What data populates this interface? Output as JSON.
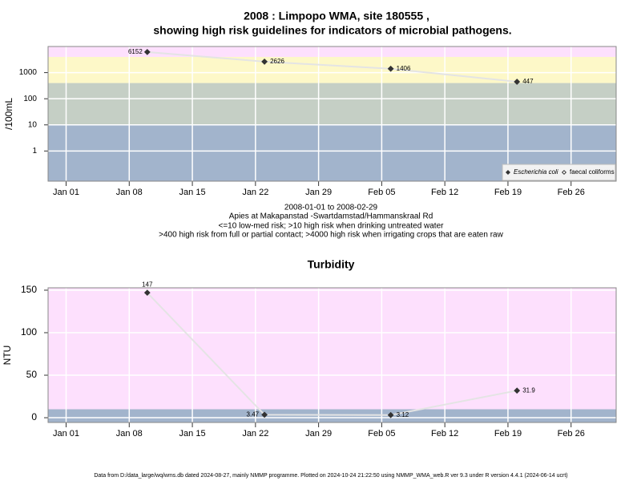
{
  "title": [
    "2008 : Limpopo WMA, site 180555 ,",
    "showing high risk guidelines for indicators of microbial pathogens."
  ],
  "chart_data": [
    {
      "type": "line",
      "log_y": true,
      "ylabel": "/100mL",
      "x": [
        "2008-01-10",
        "2008-01-23",
        "2008-02-06",
        "2008-02-20"
      ],
      "series": [
        {
          "name": "Escherichia coli",
          "color": "#333333",
          "marker": "filled",
          "values": [
            6152,
            2626,
            1406,
            447
          ]
        },
        {
          "name": "faecal coliforms",
          "color": "#333333",
          "marker": "open",
          "values": [
            null,
            null,
            null,
            null
          ]
        }
      ],
      "line_color": "#e4e4e4",
      "xlim": [
        "2007-12-30",
        "2008-03-02"
      ],
      "xticks": [
        {
          "value": "2008-01-01",
          "label": "Jan 01"
        },
        {
          "value": "2008-01-08",
          "label": "Jan 08"
        },
        {
          "value": "2008-01-15",
          "label": "Jan 15"
        },
        {
          "value": "2008-01-22",
          "label": "Jan 22"
        },
        {
          "value": "2008-01-29",
          "label": "Jan 29"
        },
        {
          "value": "2008-02-05",
          "label": "Feb 05"
        },
        {
          "value": "2008-02-12",
          "label": "Feb 12"
        },
        {
          "value": "2008-02-19",
          "label": "Feb 19"
        },
        {
          "value": "2008-02-26",
          "label": "Feb 26"
        }
      ],
      "ylim": [
        0.07,
        10000
      ],
      "yticks": [
        1,
        10,
        100,
        1000
      ],
      "thresholds": [
        10,
        400,
        4000
      ],
      "band_colors": [
        "#a2b4cc",
        "#c5cfc5",
        "#fdf8c8",
        "#fde0fd"
      ],
      "grid": true,
      "legend": "bottom-right",
      "notes": [
        "2008-01-01 to 2008-02-29",
        "Apies at Makapanstad -Swartdamstad/Hammanskraal Rd",
        "<=10 low-med risk; >10 high risk when drinking untreated water",
        ">400 high risk from full or partial contact; >4000 high risk when irrigating crops that are eaten raw"
      ]
    },
    {
      "type": "line",
      "log_y": false,
      "title": "Turbidity",
      "ylabel": "NTU",
      "x": [
        "2008-01-10",
        "2008-01-23",
        "2008-02-06",
        "2008-02-20"
      ],
      "series": [
        {
          "name": "Turbidity",
          "color": "#333333",
          "marker": "filled",
          "values": [
            147,
            3.47,
            3.12,
            31.9
          ]
        }
      ],
      "line_color": "#e4e4e4",
      "xlim": [
        "2007-12-30",
        "2008-03-02"
      ],
      "xticks": [
        {
          "value": "2008-01-01",
          "label": "Jan 01"
        },
        {
          "value": "2008-01-08",
          "label": "Jan 08"
        },
        {
          "value": "2008-01-15",
          "label": "Jan 15"
        },
        {
          "value": "2008-01-22",
          "label": "Jan 22"
        },
        {
          "value": "2008-01-29",
          "label": "Jan 29"
        },
        {
          "value": "2008-02-05",
          "label": "Feb 05"
        },
        {
          "value": "2008-02-12",
          "label": "Feb 12"
        },
        {
          "value": "2008-02-19",
          "label": "Feb 19"
        },
        {
          "value": "2008-02-26",
          "label": "Feb 26"
        }
      ],
      "ylim": [
        -5.6,
        152.8
      ],
      "yticks": [
        0,
        50,
        100,
        150
      ],
      "thresholds": [
        10
      ],
      "band_colors": [
        "#a2b4cc",
        "#fde0fd"
      ],
      "grid": true
    }
  ],
  "footer": "Data from D:/data_large/wq/wms.db dated 2024-08-27, mainly NMMP programme. Plotted on 2024-10-24 21:22:50 using NMMP_WMA_web.R ver 9.3 under R version 4.4.1 (2024-06-14 ucrt)"
}
